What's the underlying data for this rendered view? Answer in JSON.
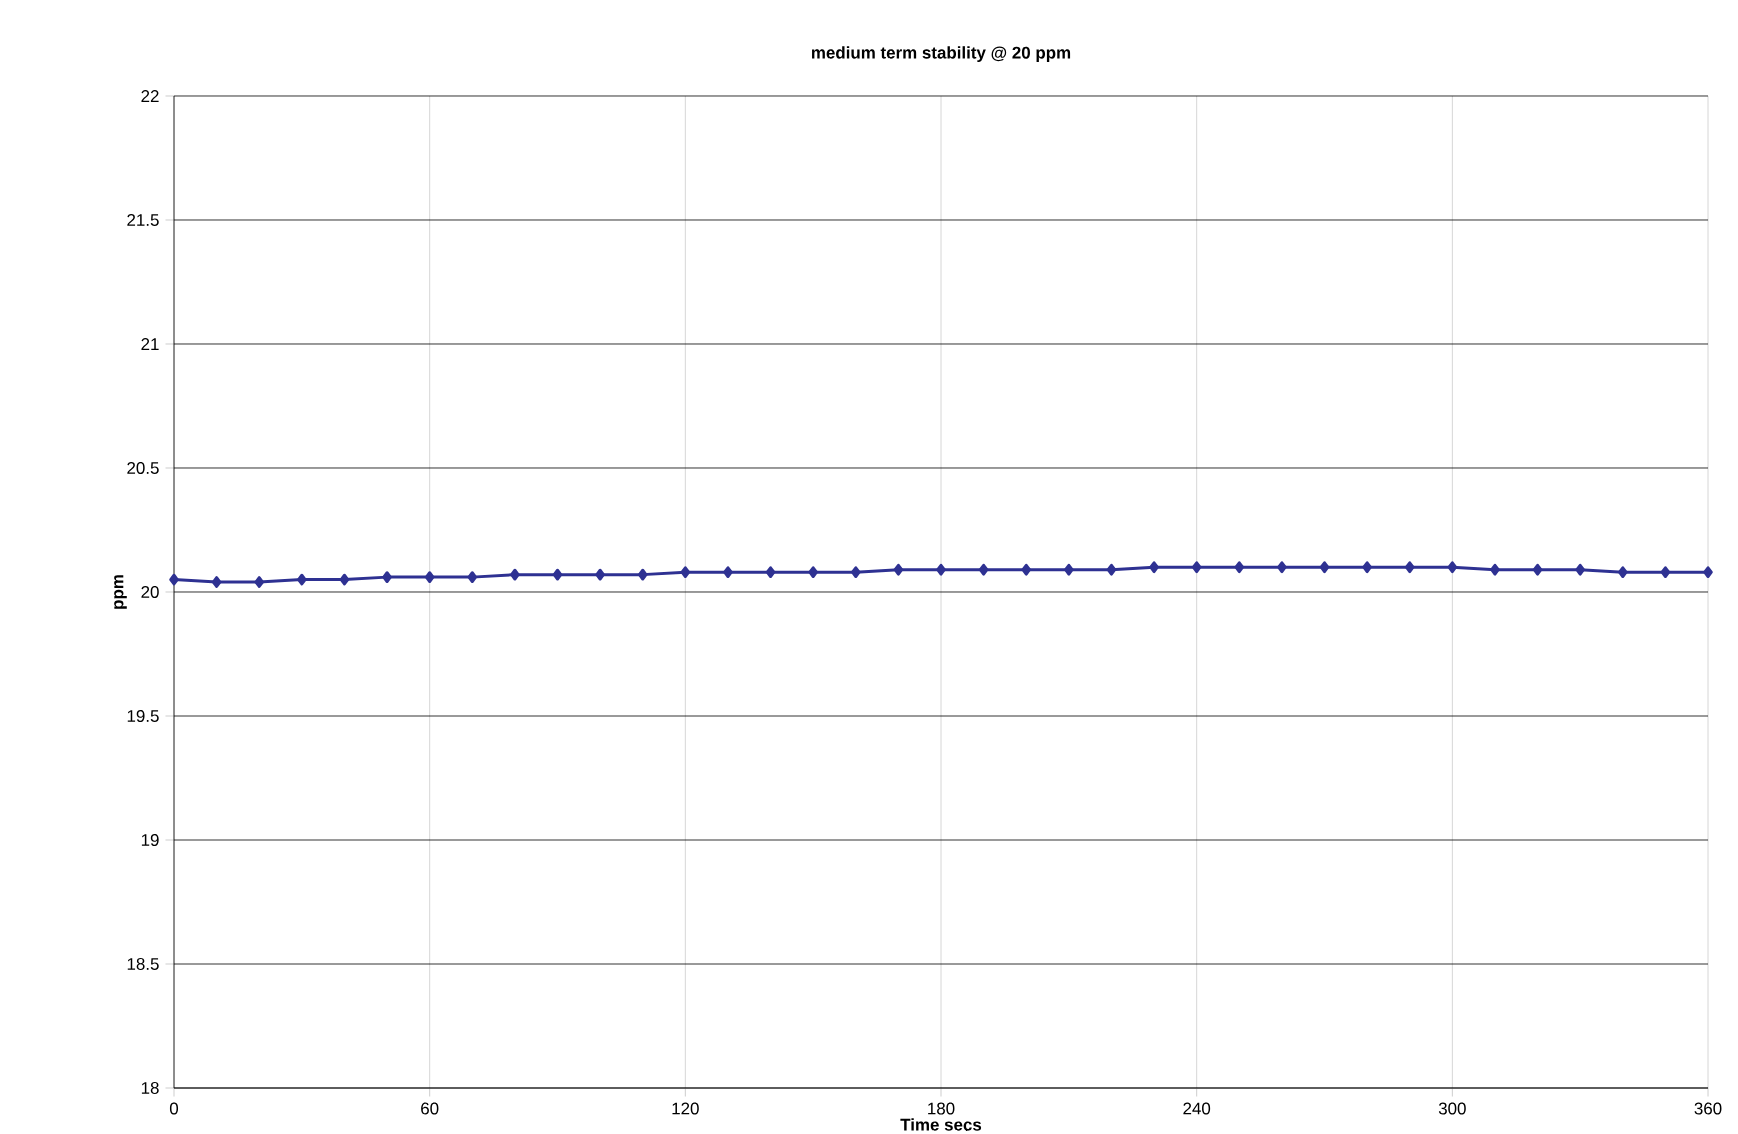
{
  "chart_data": {
    "type": "line",
    "title": "medium term stability @ 20 ppm",
    "xlabel": "Time secs",
    "ylabel": "ppm",
    "x": [
      0,
      10,
      20,
      30,
      40,
      50,
      60,
      70,
      80,
      90,
      100,
      110,
      120,
      130,
      140,
      150,
      160,
      170,
      180,
      190,
      200,
      210,
      220,
      230,
      240,
      250,
      260,
      270,
      280,
      290,
      300,
      310,
      320,
      330,
      340,
      350,
      360
    ],
    "series": [
      {
        "color": "#2e3192",
        "values": [
          20.05,
          20.04,
          20.04,
          20.05,
          20.05,
          20.06,
          20.06,
          20.06,
          20.07,
          20.07,
          20.07,
          20.07,
          20.08,
          20.08,
          20.08,
          20.08,
          20.08,
          20.09,
          20.09,
          20.09,
          20.09,
          20.09,
          20.09,
          20.1,
          20.1,
          20.1,
          20.1,
          20.1,
          20.1,
          20.1,
          20.1,
          20.09,
          20.09,
          20.09,
          20.08,
          20.08,
          20.08
        ]
      }
    ],
    "xlim": [
      0,
      360
    ],
    "xticks": [
      0,
      60,
      120,
      180,
      240,
      300,
      360
    ],
    "ylim": [
      18,
      22
    ],
    "yticks": [
      18,
      18.5,
      19,
      19.5,
      20,
      20.5,
      21,
      21.5,
      22
    ],
    "grid": true,
    "marker": "diamond",
    "line_style": "solid"
  }
}
